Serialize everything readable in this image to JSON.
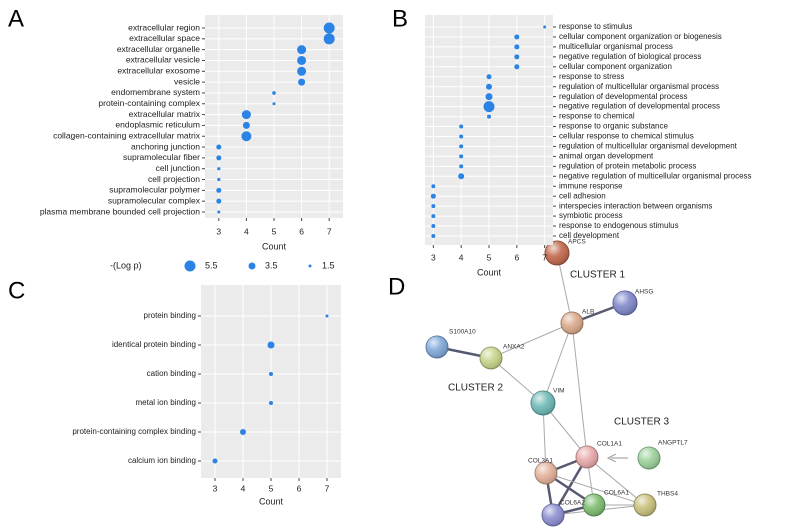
{
  "chart_data": [
    {
      "type": "dot",
      "panel": "A",
      "xlabel": "Count",
      "color": "#2b83e6",
      "categories": [
        "extracellular region",
        "extracellular space",
        "extracellular organelle",
        "extracellular vesicle",
        "extracellular exosome",
        "vesicle",
        "endomembrane system",
        "protein-containing complex",
        "extracellular matrix",
        "endoplasmic reticulum",
        "collagen-containing extracellular matrix",
        "anchoring junction",
        "supramolecular fiber",
        "cell junction",
        "cell projection",
        "supramolecular polymer",
        "supramolecular complex",
        "plasma membrane bounded cell projection"
      ],
      "values": [
        7,
        7,
        6,
        6,
        6,
        6,
        5,
        5,
        4,
        4,
        4,
        3,
        3,
        3,
        3,
        3,
        3,
        3
      ],
      "sizes": [
        5.5,
        5.5,
        4.5,
        4.5,
        4.5,
        3.5,
        1.8,
        1.5,
        4.5,
        3.5,
        5,
        2.5,
        2.5,
        1.6,
        1.6,
        2.5,
        2.5,
        1.5
      ],
      "xlim": [
        2.5,
        7.5
      ],
      "xticks": [
        3,
        4,
        5,
        6,
        7
      ],
      "grid": true,
      "legend": {
        "title": "-(Log p)",
        "values": [
          5.5,
          3.5,
          1.5
        ]
      }
    },
    {
      "type": "dot",
      "panel": "B",
      "xlabel": "Count",
      "color": "#2b83e6",
      "categories": [
        "response to stimulus",
        "cellular component organization or biogenesis",
        "multicellular organismal process",
        "negative regulation of biological process",
        "cellular component organization",
        "response to stress",
        "regulation of multicellular organismal process",
        "regulation of developmental process",
        "negative regulation of developmental process",
        "response to chemical",
        "response to organic substance",
        "cellular response to chemical stimulus",
        "regulation of multicellular organismal development",
        "animal organ development",
        "regulation of protein metabolic process",
        "negative regulation of multicellular organismal process",
        "immune response",
        "cell adhesion",
        "interspecies interaction between organisms",
        "symbiotic process",
        "response to endogenous stimulus",
        "cell development"
      ],
      "values": [
        7,
        6,
        6,
        6,
        6,
        5,
        5,
        5,
        5,
        5,
        4,
        4,
        4,
        4,
        4,
        4,
        3,
        3,
        3,
        3,
        3,
        3
      ],
      "sizes": [
        1.5,
        2.5,
        2.5,
        2.5,
        2.5,
        2.5,
        3,
        3.5,
        5.5,
        2,
        2,
        2,
        2,
        2,
        2,
        3,
        2,
        2.5,
        2,
        2,
        2,
        2
      ],
      "xlim": [
        2.7,
        7.3
      ],
      "xticks": [
        3,
        4,
        5,
        6,
        7
      ],
      "grid": true
    },
    {
      "type": "dot",
      "panel": "C",
      "xlabel": "Count",
      "color": "#2b83e6",
      "categories": [
        "protein binding",
        "identical protein binding",
        "cation binding",
        "metal ion binding",
        "protein-containing complex binding",
        "calcium ion binding"
      ],
      "values": [
        7,
        5,
        5,
        5,
        4,
        3
      ],
      "sizes": [
        1.5,
        3.5,
        2,
        2,
        3,
        2.5
      ],
      "xlim": [
        2.5,
        7.5
      ],
      "xticks": [
        3,
        4,
        5,
        6,
        7
      ],
      "grid": true
    }
  ],
  "network": {
    "panel": "D",
    "clusters": [
      "CLUSTER 1",
      "CLUSTER 2",
      "CLUSTER 3"
    ],
    "nodes": [
      {
        "label": "APCS"
      },
      {
        "label": "ALB"
      },
      {
        "label": "AHSG"
      },
      {
        "label": "S100A10"
      },
      {
        "label": "ANXA2"
      },
      {
        "label": "VIM"
      },
      {
        "label": "COL1A1"
      },
      {
        "label": "ANGPTL7"
      },
      {
        "label": "COL3A1"
      },
      {
        "label": "COL6A1"
      },
      {
        "label": "COL6A2"
      },
      {
        "label": "THBS4"
      }
    ]
  }
}
